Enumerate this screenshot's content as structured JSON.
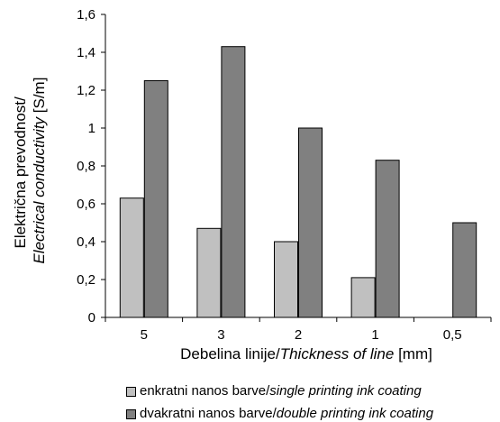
{
  "chart_data": {
    "type": "bar",
    "categories": [
      "5",
      "3",
      "2",
      "1",
      "0,5"
    ],
    "series": [
      {
        "name_main": "enkratni nanos barve/",
        "name_italic": "single printing ink coating",
        "values": [
          0.63,
          0.47,
          0.4,
          0.21,
          0
        ],
        "color": "#c0c0c0"
      },
      {
        "name_main": "dvakratni nanos barve/",
        "name_italic": "double printing ink coating",
        "values": [
          1.25,
          1.43,
          1.0,
          0.83,
          0.5
        ],
        "color": "#808080"
      }
    ],
    "ylim": [
      0,
      1.6
    ],
    "yticks": [
      "0",
      "0,2",
      "0,4",
      "0,6",
      "0,8",
      "1",
      "1,2",
      "1,4",
      "1,6"
    ],
    "ylabel_line1": "Električna prevodnost/",
    "ylabel_line2_italic": "Electrical conductivity",
    "ylabel_line2_unit": " [S/m]",
    "xlabel_main": "Debelina linije/",
    "xlabel_italic": "Thickness of line",
    "xlabel_unit": " [mm]",
    "grid": false,
    "legend_position": "bottom"
  }
}
